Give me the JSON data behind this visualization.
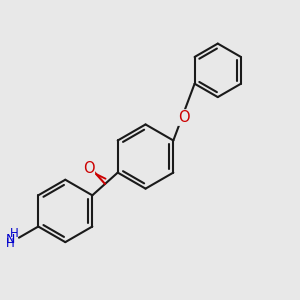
{
  "background_color": "#e8e8e8",
  "bond_color": "#1a1a1a",
  "oxygen_color": "#cc0000",
  "nitrogen_color": "#0000cc",
  "bond_width": 1.5,
  "figsize": [
    3.0,
    3.0
  ],
  "dpi": 100,
  "xlim": [
    0.0,
    1.0
  ],
  "ylim": [
    0.0,
    1.0
  ]
}
